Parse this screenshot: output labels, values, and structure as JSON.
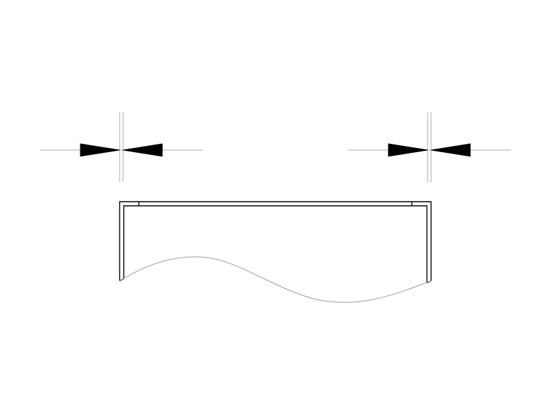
{
  "drawing": {
    "background_color": "#ffffff",
    "line_color": "#000000",
    "guide_color": "#a8a8a8",
    "break_line_color": "#9a9a9a",
    "dimension_markers": [
      {
        "id": "left",
        "type": "pinch-arrows"
      },
      {
        "id": "right",
        "type": "pinch-arrows"
      }
    ],
    "section": {
      "type": "open-channel-with-break-line"
    }
  }
}
